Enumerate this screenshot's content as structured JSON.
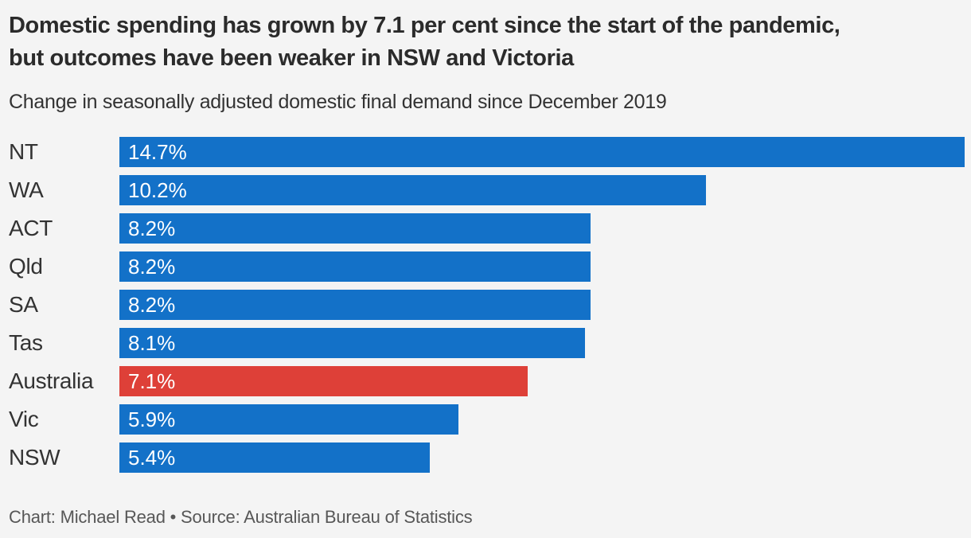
{
  "header": {
    "title": "Domestic spending has grown by 7.1 per cent since the start of the pandemic,\nbut outcomes have been weaker in NSW and Victoria",
    "subtitle": "Change in seasonally adjusted domestic final demand since December 2019"
  },
  "footer": {
    "credit": "Chart: Michael Read • Source: Australian Bureau of Statistics"
  },
  "colors": {
    "background": "#f4f4f4",
    "bar": "#1371c8",
    "highlight": "#de4038",
    "title_text": "#2b2b2b",
    "subtitle_text": "#333333",
    "label_text": "#333333",
    "value_text": "#ffffff",
    "footer_text": "#575757"
  },
  "chart_data": {
    "type": "bar",
    "orientation": "horizontal",
    "title": "Domestic spending has grown by 7.1 per cent since the start of the pandemic, but outcomes have been weaker in NSW and Victoria",
    "subtitle": "Change in seasonally adjusted domestic final demand since December 2019",
    "source": "Chart: Michael Read • Source: Australian Bureau of Statistics",
    "axis_max": 14.7,
    "grid": false,
    "legend": false,
    "categories": [
      "NT",
      "WA",
      "ACT",
      "Qld",
      "SA",
      "Tas",
      "Australia",
      "Vic",
      "NSW"
    ],
    "values": [
      14.7,
      10.2,
      8.2,
      8.2,
      8.2,
      8.1,
      7.1,
      5.9,
      5.4
    ],
    "highlight_category": "Australia",
    "rows": [
      {
        "category": "NT",
        "value": 14.7,
        "value_label": "14.7%",
        "highlight": false
      },
      {
        "category": "WA",
        "value": 10.2,
        "value_label": "10.2%",
        "highlight": false
      },
      {
        "category": "ACT",
        "value": 8.2,
        "value_label": "8.2%",
        "highlight": false
      },
      {
        "category": "Qld",
        "value": 8.2,
        "value_label": "8.2%",
        "highlight": false
      },
      {
        "category": "SA",
        "value": 8.2,
        "value_label": "8.2%",
        "highlight": false
      },
      {
        "category": "Tas",
        "value": 8.1,
        "value_label": "8.1%",
        "highlight": false
      },
      {
        "category": "Australia",
        "value": 7.1,
        "value_label": "7.1%",
        "highlight": true
      },
      {
        "category": "Vic",
        "value": 5.9,
        "value_label": "5.9%",
        "highlight": false
      },
      {
        "category": "NSW",
        "value": 5.4,
        "value_label": "5.4%",
        "highlight": false
      }
    ]
  }
}
